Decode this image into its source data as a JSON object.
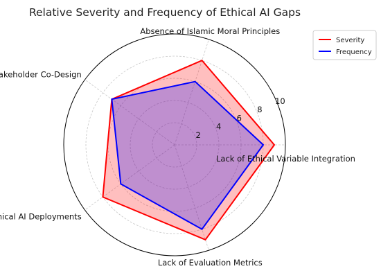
{
  "chart_data": {
    "type": "radar",
    "title": "Relative Severity and Frequency of Ethical AI Gaps",
    "categories": [
      "Lack of Ethical Variable Integration",
      "Absence of Islamic Moral Principles",
      "Minimal Stakeholder Co-Design",
      "Limited Ethical AI Deployments",
      "Lack of Evaluation Metrics"
    ],
    "series": [
      {
        "name": "Severity",
        "values": [
          9,
          8,
          7,
          8,
          9
        ],
        "color": "#ff0000",
        "fill": "#ff0000",
        "fill_opacity": 0.25
      },
      {
        "name": "Frequency",
        "values": [
          8,
          6,
          7,
          6,
          8
        ],
        "color": "#0000ff",
        "fill": "#0000ff",
        "fill_opacity": 0.25
      }
    ],
    "r_ticks": [
      2,
      4,
      6,
      8,
      10
    ],
    "r_range": [
      0,
      10
    ],
    "grid": true,
    "legend": "top-right"
  }
}
